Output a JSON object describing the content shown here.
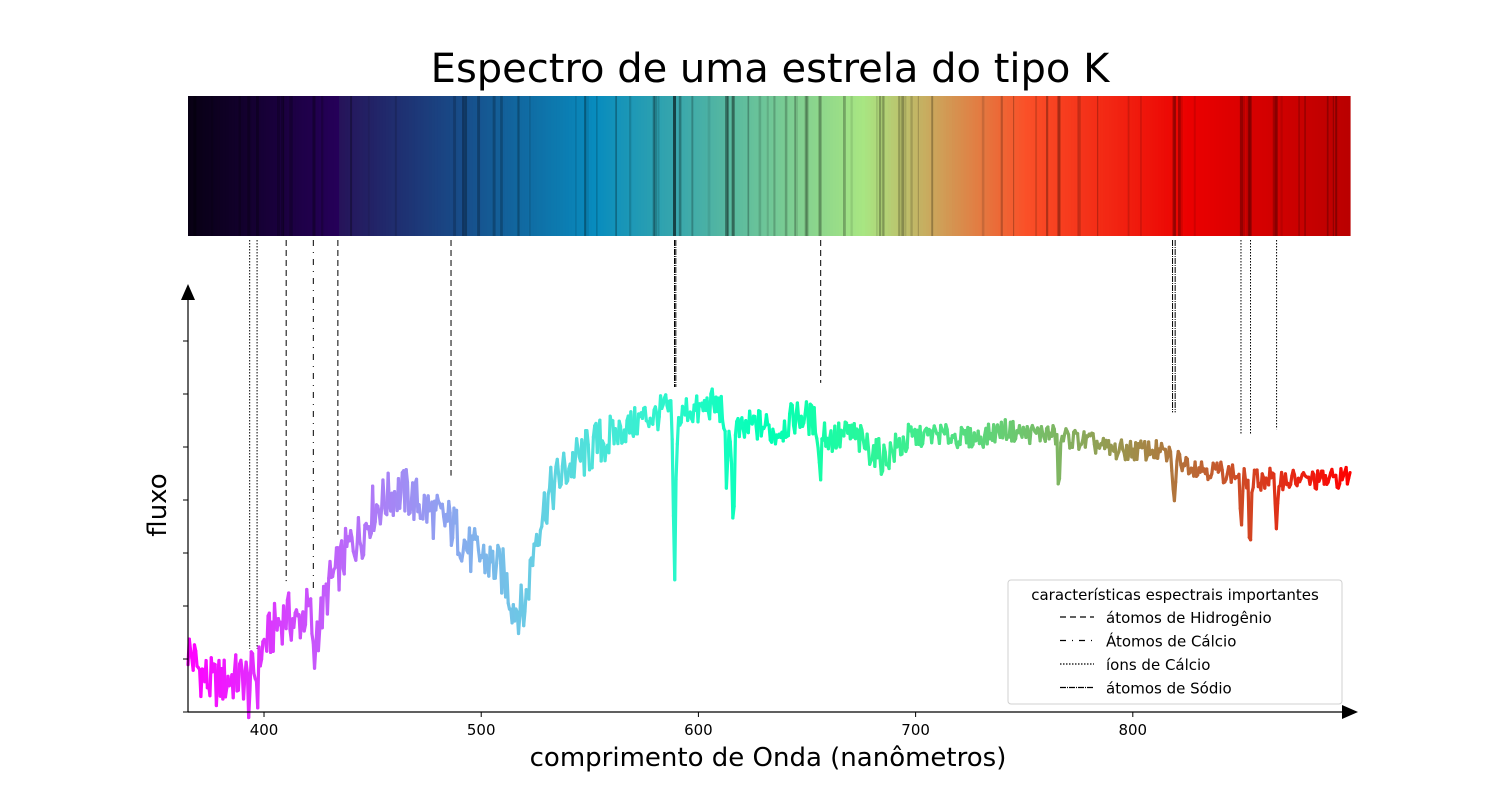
{
  "chart_data": {
    "type": "line",
    "title": "Espectro de uma estrela do tipo K",
    "xlabel": "comprimento de Onda (nanômetros)",
    "ylabel": "fluxo",
    "xlim": [
      365,
      900
    ],
    "ylim": [
      0,
      1
    ],
    "x_ticks": [
      400,
      500,
      600,
      700,
      800
    ],
    "y_tick_labels": "none",
    "grid": false,
    "colormap": "rainbow",
    "spectrum_strip": true,
    "series": [
      {
        "x": [
          365,
          370,
          375,
          380,
          385,
          390,
          395,
          400,
          405,
          410,
          415,
          420,
          425,
          430,
          435,
          440,
          445,
          450,
          455,
          460,
          465,
          470,
          475,
          480,
          485,
          490,
          495,
          500,
          505,
          510,
          515,
          520,
          525,
          530,
          535,
          540,
          545,
          550,
          555,
          560,
          565,
          570,
          575,
          580,
          585,
          590,
          595,
          600,
          605,
          610,
          615,
          620,
          625,
          630,
          635,
          640,
          645,
          650,
          655,
          660,
          665,
          670,
          675,
          680,
          685,
          690,
          695,
          700,
          710,
          720,
          730,
          740,
          750,
          760,
          770,
          780,
          790,
          800,
          810,
          820,
          830,
          840,
          850,
          855,
          860,
          865,
          870,
          880,
          890,
          900
        ],
        "y": [
          0.15,
          0.1,
          0.07,
          0.07,
          0.08,
          0.08,
          0.09,
          0.16,
          0.2,
          0.23,
          0.21,
          0.24,
          0.2,
          0.3,
          0.35,
          0.4,
          0.42,
          0.48,
          0.5,
          0.52,
          0.52,
          0.5,
          0.48,
          0.46,
          0.45,
          0.42,
          0.38,
          0.37,
          0.35,
          0.33,
          0.25,
          0.24,
          0.42,
          0.5,
          0.55,
          0.58,
          0.6,
          0.62,
          0.64,
          0.65,
          0.67,
          0.68,
          0.7,
          0.7,
          0.72,
          0.68,
          0.72,
          0.71,
          0.73,
          0.72,
          0.68,
          0.66,
          0.68,
          0.68,
          0.66,
          0.68,
          0.7,
          0.7,
          0.68,
          0.65,
          0.65,
          0.66,
          0.64,
          0.62,
          0.6,
          0.62,
          0.64,
          0.65,
          0.66,
          0.65,
          0.65,
          0.67,
          0.66,
          0.66,
          0.65,
          0.64,
          0.62,
          0.62,
          0.62,
          0.6,
          0.58,
          0.57,
          0.56,
          0.55,
          0.55,
          0.56,
          0.55,
          0.55,
          0.55,
          0.56
        ]
      }
    ],
    "absorption_lines": [
      {
        "x": 589,
        "depth": 0.4
      },
      {
        "x": 613,
        "depth": 0.2
      },
      {
        "x": 616,
        "depth": 0.24
      },
      {
        "x": 656,
        "depth": 0.12
      },
      {
        "x": 766,
        "depth": 0.12
      },
      {
        "x": 819,
        "depth": 0.12
      },
      {
        "x": 850,
        "depth": 0.12
      },
      {
        "x": 854,
        "depth": 0.16
      },
      {
        "x": 866,
        "depth": 0.14
      },
      {
        "x": 423,
        "depth": 0.12
      },
      {
        "x": 397,
        "depth": 0.06
      },
      {
        "x": 393,
        "depth": 0.05
      }
    ],
    "feature_markers": [
      {
        "x": 410.2,
        "style": "dashed",
        "ends_at_y": 0.31
      },
      {
        "x": 434.0,
        "style": "dashed",
        "ends_at_y": 0.42
      },
      {
        "x": 486.1,
        "style": "dashed",
        "ends_at_y": 0.56
      },
      {
        "x": 656.3,
        "style": "dashed",
        "ends_at_y": 0.78
      },
      {
        "x": 422.7,
        "style": "dashdot",
        "ends_at_y": 0.28
      },
      {
        "x": 393.4,
        "style": "dotted",
        "ends_at_y": 0.15
      },
      {
        "x": 396.8,
        "style": "dotted",
        "ends_at_y": 0.15
      },
      {
        "x": 849.8,
        "style": "dotted",
        "ends_at_y": 0.66
      },
      {
        "x": 854.2,
        "style": "dotted",
        "ends_at_y": 0.66
      },
      {
        "x": 866.2,
        "style": "dotted",
        "ends_at_y": 0.67
      },
      {
        "x": 589.0,
        "style": "longdashdot",
        "ends_at_y": 0.77
      },
      {
        "x": 589.6,
        "style": "longdashdot",
        "ends_at_y": 0.77
      },
      {
        "x": 818.3,
        "style": "longdashdot",
        "ends_at_y": 0.71
      },
      {
        "x": 819.5,
        "style": "longdashdot",
        "ends_at_y": 0.71
      }
    ],
    "legend": {
      "title": "características espectrais importantes",
      "placement": "lower right",
      "entries": [
        {
          "label": "átomos de Hidrogênio",
          "style": "dashed"
        },
        {
          "label": "Átomos de Cálcio",
          "style": "dashdot"
        },
        {
          "label": "íons de Cálcio",
          "style": "dotted"
        },
        {
          "label": "átomos de Sódio",
          "style": "longdashdot"
        }
      ]
    }
  }
}
